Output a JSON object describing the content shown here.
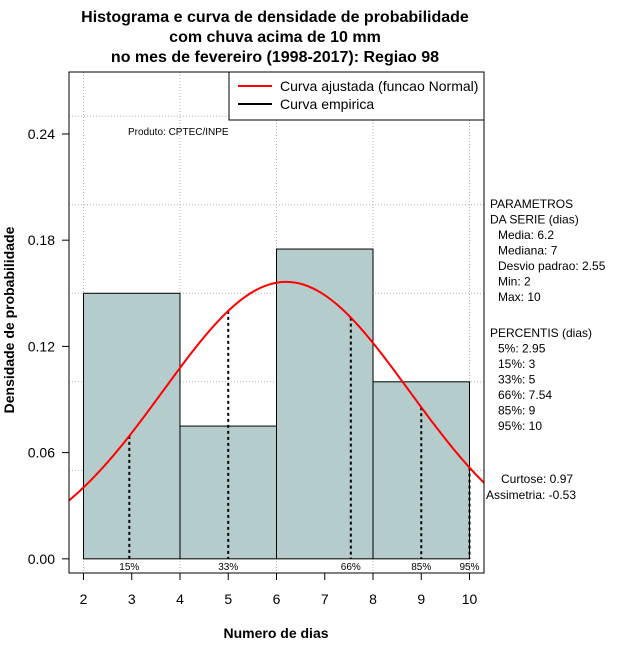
{
  "chart_data": {
    "type": "bar",
    "title_lines": [
      "Histograma e curva de densidade de probabilidade",
      "com chuva acima de 10 mm",
      "no mes de fevereiro (1998-2017): Regiao 98"
    ],
    "xlabel": "Numero de dias",
    "ylabel": "Densidade de probabilidade",
    "xlim": [
      1.7,
      10.3
    ],
    "ylim": [
      -0.008,
      0.275
    ],
    "x_ticks": [
      2,
      3,
      4,
      5,
      6,
      7,
      8,
      9,
      10
    ],
    "y_ticks": [
      0.0,
      0.06,
      0.12,
      0.18,
      0.24
    ],
    "y_tick_labels": [
      "0.00",
      "0.06",
      "0.12",
      "0.18",
      "0.24"
    ],
    "grid": true,
    "bar_color": "#b5cccc",
    "bins": [
      {
        "start": 2,
        "end": 4,
        "density": 0.15
      },
      {
        "start": 4,
        "end": 6,
        "density": 0.075
      },
      {
        "start": 6,
        "end": 8,
        "density": 0.175
      },
      {
        "start": 8,
        "end": 10,
        "density": 0.1
      }
    ],
    "series": [
      {
        "name": "Curva ajustada (funcao Normal)",
        "color": "#ff0000",
        "distribution": "normal",
        "mean": 6.2,
        "sd": 2.55
      },
      {
        "name": "Curva empirica",
        "color": "#000000",
        "points": []
      }
    ],
    "percentile_markers": [
      {
        "x": 2.95,
        "label": "15%"
      },
      {
        "x": 5,
        "label": "33%"
      },
      {
        "x": 7.54,
        "label": "66%"
      },
      {
        "x": 9,
        "label": "85%"
      },
      {
        "x": 10,
        "label": "95%"
      }
    ],
    "annotations": {
      "produto": "Produto: CPTEC/INPE",
      "parametros": [
        "PARAMETROS",
        "DA SERIE (dias)",
        "Media: 6.2",
        "Mediana: 7",
        "Desvio padrao: 2.55",
        "Min: 2",
        "Max: 10"
      ],
      "percentis": [
        "PERCENTIS (dias)",
        "5%: 2.95",
        "15%: 3",
        "33%: 5",
        "66%: 7.54",
        "85%: 9",
        "95%: 10"
      ],
      "shape": [
        "Curtose: 0.97",
        "Assimetria: -0.53"
      ]
    }
  }
}
